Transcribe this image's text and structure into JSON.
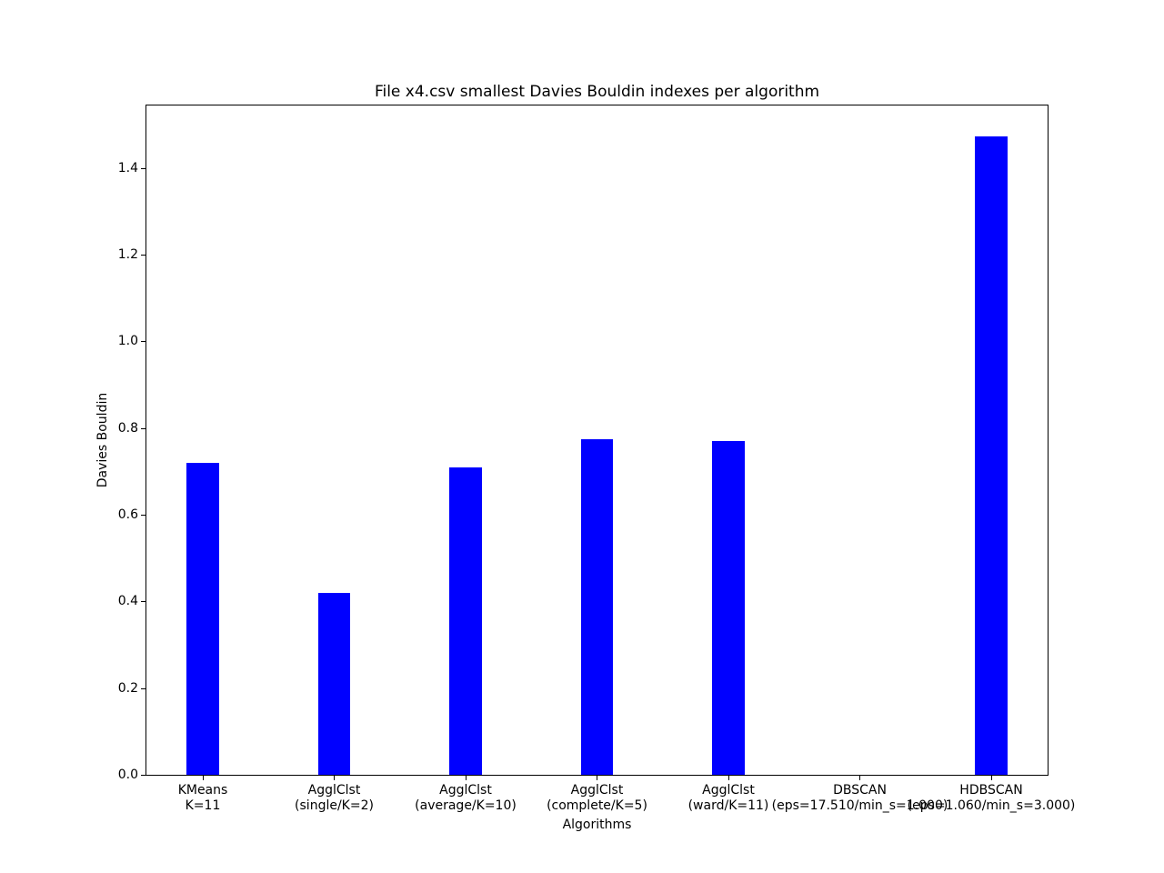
{
  "chart_data": {
    "type": "bar",
    "title": "File x4.csv smallest Davies Bouldin indexes per algorithm",
    "xlabel": "Algorithms",
    "ylabel": "Davies Bouldin",
    "categories": [
      {
        "name": "KMeans",
        "params": "K=11"
      },
      {
        "name": "AgglClst",
        "params": "(single/K=2)"
      },
      {
        "name": "AgglClst",
        "params": "(average/K=10)"
      },
      {
        "name": "AgglClst",
        "params": "(complete/K=5)"
      },
      {
        "name": "AgglClst",
        "params": "(ward/K=11)"
      },
      {
        "name": "DBSCAN",
        "params": "(eps=17.510/min_s=1.000)"
      },
      {
        "name": "HDBSCAN",
        "params": "(eps=1.060/min_s=3.000)"
      }
    ],
    "values": [
      0.72,
      0.419,
      0.708,
      0.775,
      0.77,
      0.0,
      1.473
    ],
    "ytick_labels": [
      "0.0",
      "0.2",
      "0.4",
      "0.6",
      "0.8",
      "1.0",
      "1.2",
      "1.4"
    ],
    "ylim": [
      0,
      1.548
    ],
    "bar_color": "#0000ff",
    "axis_color": "#000000",
    "background_color": "#ffffff",
    "grid": false,
    "legend": null
  }
}
